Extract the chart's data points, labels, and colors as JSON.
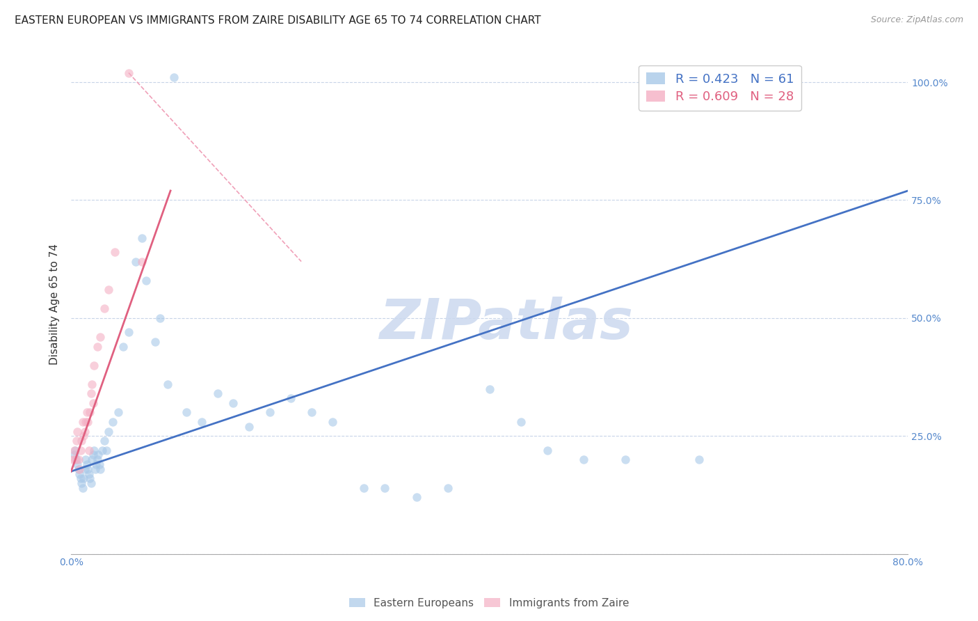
{
  "title": "EASTERN EUROPEAN VS IMMIGRANTS FROM ZAIRE DISABILITY AGE 65 TO 74 CORRELATION CHART",
  "source": "Source: ZipAtlas.com",
  "ylabel": "Disability Age 65 to 74",
  "xlim": [
    0.0,
    0.8
  ],
  "ylim": [
    0.0,
    1.06
  ],
  "legend1_label": "R = 0.423   N = 61",
  "legend2_label": "R = 0.609   N = 28",
  "watermark": "ZIPatlas",
  "watermark_color": "#ccd9ef",
  "blue_trend": [
    0.0,
    0.175,
    0.8,
    0.77
  ],
  "pink_trend": [
    0.0,
    0.175,
    0.095,
    0.77
  ],
  "pink_dash": [
    0.055,
    1.02,
    0.22,
    0.62
  ],
  "blue_color": "#a8c8e8",
  "pink_color": "#f4b0c4",
  "blue_line_color": "#4472c4",
  "pink_line_color": "#e06080",
  "pink_dash_color": "#f0a0b8",
  "background_color": "#ffffff",
  "grid_color": "#c8d4e8",
  "title_fontsize": 11,
  "axis_label_fontsize": 11,
  "tick_fontsize": 10,
  "dot_size": 80,
  "dot_alpha": 0.6,
  "blue_x": [
    0.003,
    0.004,
    0.005,
    0.006,
    0.007,
    0.008,
    0.009,
    0.01,
    0.011,
    0.012,
    0.013,
    0.014,
    0.015,
    0.016,
    0.017,
    0.018,
    0.019,
    0.02,
    0.021,
    0.022,
    0.023,
    0.024,
    0.025,
    0.026,
    0.027,
    0.028,
    0.03,
    0.032,
    0.034,
    0.036,
    0.04,
    0.045,
    0.05,
    0.055,
    0.062,
    0.068,
    0.072,
    0.08,
    0.085,
    0.092,
    0.098,
    0.11,
    0.125,
    0.14,
    0.155,
    0.17,
    0.19,
    0.21,
    0.23,
    0.25,
    0.28,
    0.3,
    0.33,
    0.36,
    0.4,
    0.43,
    0.455,
    0.49,
    0.53,
    0.6,
    0.64
  ],
  "blue_y": [
    0.21,
    0.22,
    0.2,
    0.19,
    0.18,
    0.17,
    0.16,
    0.15,
    0.14,
    0.16,
    0.18,
    0.2,
    0.19,
    0.18,
    0.17,
    0.16,
    0.15,
    0.2,
    0.21,
    0.22,
    0.18,
    0.19,
    0.2,
    0.21,
    0.19,
    0.18,
    0.22,
    0.24,
    0.22,
    0.26,
    0.28,
    0.3,
    0.44,
    0.47,
    0.62,
    0.67,
    0.58,
    0.45,
    0.5,
    0.36,
    1.01,
    0.3,
    0.28,
    0.34,
    0.32,
    0.27,
    0.3,
    0.33,
    0.3,
    0.28,
    0.14,
    0.14,
    0.12,
    0.14,
    0.35,
    0.28,
    0.22,
    0.2,
    0.2,
    0.2,
    1.02
  ],
  "pink_x": [
    0.002,
    0.003,
    0.004,
    0.005,
    0.006,
    0.007,
    0.008,
    0.009,
    0.01,
    0.011,
    0.012,
    0.013,
    0.014,
    0.015,
    0.016,
    0.017,
    0.018,
    0.019,
    0.02,
    0.021,
    0.022,
    0.025,
    0.028,
    0.032,
    0.036,
    0.042,
    0.055,
    0.068
  ],
  "pink_y": [
    0.2,
    0.22,
    0.2,
    0.24,
    0.26,
    0.2,
    0.18,
    0.22,
    0.24,
    0.28,
    0.25,
    0.26,
    0.28,
    0.3,
    0.28,
    0.22,
    0.3,
    0.34,
    0.36,
    0.32,
    0.4,
    0.44,
    0.46,
    0.52,
    0.56,
    0.64,
    1.02,
    0.62
  ]
}
